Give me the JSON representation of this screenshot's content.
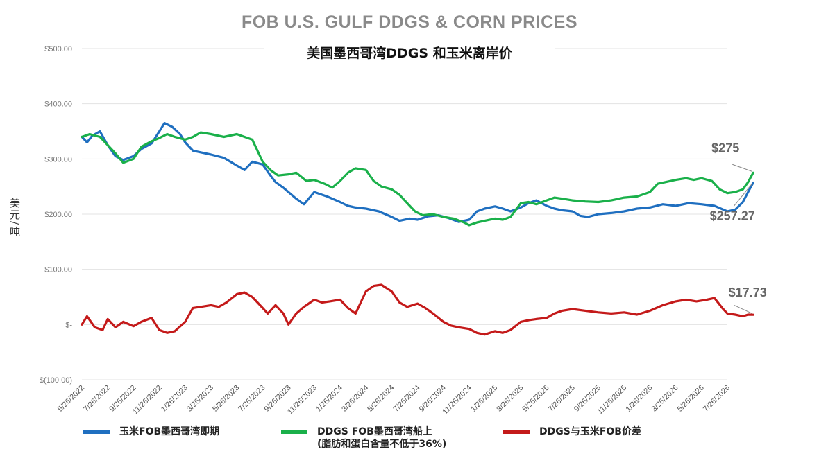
{
  "chart_data": {
    "type": "line",
    "title": "FOB U.S. GULF DDGS & CORN PRICES",
    "subtitle": "美国墨西哥湾DDGS 和玉米离岸价",
    "ylabel": "美元/吨",
    "ylim": [
      -100,
      500
    ],
    "yticks": [
      {
        "value": 500,
        "label": "$500.00"
      },
      {
        "value": 400,
        "label": "$400.00"
      },
      {
        "value": 300,
        "label": "$300.00"
      },
      {
        "value": 200,
        "label": "$200.00"
      },
      {
        "value": 100,
        "label": "$100.00"
      },
      {
        "value": 0,
        "label": "$-"
      },
      {
        "value": -100,
        "label": "$(100.00)"
      }
    ],
    "xticks": [
      "5/26/2022",
      "7/26/2022",
      "9/26/2022",
      "11/26/2022",
      "1/26/2023",
      "3/26/2023",
      "5/26/2023",
      "7/26/2023",
      "9/26/2023",
      "11/26/2023",
      "1/26/2024",
      "3/26/2024",
      "5/26/2024",
      "7/26/2024",
      "9/26/2024",
      "11/26/2024",
      "1/26/2025",
      "3/26/2025",
      "5/26/2025",
      "7/26/2025",
      "9/26/2025",
      "11/26/2025",
      "1/26/2026",
      "3/26/2026",
      "5/26/2026",
      "7/26/2026"
    ],
    "series": [
      {
        "name": "玉米FOB墨西哥湾即期",
        "color": "#1f6fc0",
        "points": [
          [
            0,
            340
          ],
          [
            0.2,
            330
          ],
          [
            0.4,
            342
          ],
          [
            0.7,
            350
          ],
          [
            1,
            325
          ],
          [
            1.3,
            305
          ],
          [
            1.6,
            298
          ],
          [
            2,
            305
          ],
          [
            2.3,
            318
          ],
          [
            2.7,
            328
          ],
          [
            3,
            350
          ],
          [
            3.2,
            365
          ],
          [
            3.5,
            358
          ],
          [
            3.8,
            345
          ],
          [
            4,
            330
          ],
          [
            4.3,
            315
          ],
          [
            4.6,
            312
          ],
          [
            5,
            308
          ],
          [
            5.5,
            302
          ],
          [
            6,
            288
          ],
          [
            6.3,
            280
          ],
          [
            6.6,
            295
          ],
          [
            7,
            290
          ],
          [
            7.3,
            270
          ],
          [
            7.5,
            258
          ],
          [
            7.8,
            248
          ],
          [
            8,
            240
          ],
          [
            8.3,
            228
          ],
          [
            8.6,
            218
          ],
          [
            9,
            240
          ],
          [
            9.5,
            232
          ],
          [
            10,
            222
          ],
          [
            10.3,
            215
          ],
          [
            10.6,
            212
          ],
          [
            11,
            210
          ],
          [
            11.5,
            205
          ],
          [
            12,
            195
          ],
          [
            12.3,
            188
          ],
          [
            12.7,
            192
          ],
          [
            13,
            190
          ],
          [
            13.4,
            196
          ],
          [
            13.8,
            198
          ],
          [
            14.2,
            193
          ],
          [
            14.6,
            186
          ],
          [
            15,
            190
          ],
          [
            15.3,
            205
          ],
          [
            15.6,
            210
          ],
          [
            16,
            214
          ],
          [
            16.3,
            210
          ],
          [
            16.6,
            205
          ],
          [
            17,
            212
          ],
          [
            17.3,
            220
          ],
          [
            17.6,
            225
          ],
          [
            18,
            215
          ],
          [
            18.3,
            210
          ],
          [
            18.6,
            207
          ],
          [
            19,
            205
          ],
          [
            19.3,
            197
          ],
          [
            19.6,
            195
          ],
          [
            20,
            200
          ],
          [
            20.5,
            202
          ],
          [
            21,
            205
          ],
          [
            21.5,
            210
          ],
          [
            22,
            212
          ],
          [
            22.5,
            218
          ],
          [
            23,
            215
          ],
          [
            23.5,
            220
          ],
          [
            24,
            218
          ],
          [
            24.5,
            215
          ],
          [
            25,
            205
          ],
          [
            25.3,
            208
          ],
          [
            25.6,
            222
          ],
          [
            25.8,
            240
          ],
          [
            26,
            257
          ]
        ]
      },
      {
        "name": "DDGS FOB墨西哥湾船上",
        "sublabel": "(脂肪和蛋白含量不低于36%)",
        "color": "#1ab04a",
        "points": [
          [
            0,
            340
          ],
          [
            0.3,
            345
          ],
          [
            0.7,
            340
          ],
          [
            1,
            325
          ],
          [
            1.3,
            310
          ],
          [
            1.6,
            293
          ],
          [
            2,
            300
          ],
          [
            2.3,
            322
          ],
          [
            2.7,
            332
          ],
          [
            3,
            338
          ],
          [
            3.3,
            345
          ],
          [
            3.6,
            340
          ],
          [
            4,
            335
          ],
          [
            4.3,
            340
          ],
          [
            4.6,
            348
          ],
          [
            5,
            345
          ],
          [
            5.5,
            340
          ],
          [
            6,
            345
          ],
          [
            6.3,
            340
          ],
          [
            6.6,
            335
          ],
          [
            7,
            295
          ],
          [
            7.3,
            280
          ],
          [
            7.6,
            270
          ],
          [
            8,
            272
          ],
          [
            8.3,
            275
          ],
          [
            8.7,
            260
          ],
          [
            9,
            262
          ],
          [
            9.4,
            255
          ],
          [
            9.7,
            248
          ],
          [
            10,
            260
          ],
          [
            10.3,
            275
          ],
          [
            10.6,
            283
          ],
          [
            11,
            280
          ],
          [
            11.3,
            260
          ],
          [
            11.6,
            250
          ],
          [
            12,
            245
          ],
          [
            12.3,
            235
          ],
          [
            12.6,
            220
          ],
          [
            12.9,
            205
          ],
          [
            13.2,
            198
          ],
          [
            13.6,
            200
          ],
          [
            14,
            195
          ],
          [
            14.4,
            192
          ],
          [
            14.8,
            185
          ],
          [
            15,
            180
          ],
          [
            15.3,
            185
          ],
          [
            15.6,
            188
          ],
          [
            16,
            192
          ],
          [
            16.3,
            190
          ],
          [
            16.6,
            195
          ],
          [
            17,
            220
          ],
          [
            17.3,
            222
          ],
          [
            17.6,
            218
          ],
          [
            18,
            225
          ],
          [
            18.3,
            230
          ],
          [
            18.6,
            228
          ],
          [
            19,
            225
          ],
          [
            19.5,
            223
          ],
          [
            20,
            222
          ],
          [
            20.5,
            225
          ],
          [
            21,
            230
          ],
          [
            21.5,
            232
          ],
          [
            22,
            240
          ],
          [
            22.3,
            255
          ],
          [
            22.6,
            258
          ],
          [
            23,
            262
          ],
          [
            23.4,
            265
          ],
          [
            23.7,
            262
          ],
          [
            24,
            265
          ],
          [
            24.4,
            260
          ],
          [
            24.7,
            245
          ],
          [
            25,
            238
          ],
          [
            25.3,
            240
          ],
          [
            25.6,
            245
          ],
          [
            25.8,
            258
          ],
          [
            26,
            275
          ]
        ]
      },
      {
        "name": "DDGS与玉米FOB价差",
        "color": "#c41a1a",
        "points": [
          [
            0,
            0
          ],
          [
            0.2,
            15
          ],
          [
            0.5,
            -5
          ],
          [
            0.8,
            -10
          ],
          [
            1,
            10
          ],
          [
            1.3,
            -5
          ],
          [
            1.6,
            5
          ],
          [
            2,
            -3
          ],
          [
            2.3,
            5
          ],
          [
            2.7,
            12
          ],
          [
            3,
            -10
          ],
          [
            3.3,
            -15
          ],
          [
            3.6,
            -12
          ],
          [
            4,
            5
          ],
          [
            4.3,
            30
          ],
          [
            4.6,
            32
          ],
          [
            5,
            35
          ],
          [
            5.3,
            32
          ],
          [
            5.6,
            40
          ],
          [
            6,
            55
          ],
          [
            6.3,
            58
          ],
          [
            6.6,
            50
          ],
          [
            7,
            30
          ],
          [
            7.2,
            20
          ],
          [
            7.5,
            35
          ],
          [
            7.8,
            20
          ],
          [
            8,
            0
          ],
          [
            8.3,
            20
          ],
          [
            8.6,
            32
          ],
          [
            9,
            45
          ],
          [
            9.3,
            40
          ],
          [
            9.6,
            42
          ],
          [
            10,
            45
          ],
          [
            10.3,
            30
          ],
          [
            10.6,
            20
          ],
          [
            11,
            60
          ],
          [
            11.3,
            70
          ],
          [
            11.6,
            72
          ],
          [
            12,
            60
          ],
          [
            12.3,
            40
          ],
          [
            12.6,
            32
          ],
          [
            13,
            38
          ],
          [
            13.3,
            30
          ],
          [
            13.6,
            20
          ],
          [
            14,
            5
          ],
          [
            14.3,
            -2
          ],
          [
            14.6,
            -5
          ],
          [
            15,
            -8
          ],
          [
            15.3,
            -15
          ],
          [
            15.6,
            -18
          ],
          [
            16,
            -12
          ],
          [
            16.3,
            -15
          ],
          [
            16.6,
            -10
          ],
          [
            17,
            5
          ],
          [
            17.3,
            8
          ],
          [
            17.6,
            10
          ],
          [
            18,
            12
          ],
          [
            18.3,
            20
          ],
          [
            18.6,
            25
          ],
          [
            19,
            28
          ],
          [
            19.5,
            25
          ],
          [
            20,
            22
          ],
          [
            20.5,
            20
          ],
          [
            21,
            22
          ],
          [
            21.5,
            18
          ],
          [
            22,
            25
          ],
          [
            22.5,
            35
          ],
          [
            23,
            42
          ],
          [
            23.4,
            45
          ],
          [
            23.8,
            42
          ],
          [
            24.2,
            45
          ],
          [
            24.5,
            48
          ],
          [
            24.8,
            30
          ],
          [
            25,
            20
          ],
          [
            25.3,
            18
          ],
          [
            25.6,
            15
          ],
          [
            25.8,
            18
          ],
          [
            26,
            17.73
          ]
        ]
      }
    ],
    "annotations": [
      {
        "label": "$275",
        "series": 1
      },
      {
        "label": "$257.27",
        "series": 0
      },
      {
        "label": "$17.73",
        "series": 2
      }
    ],
    "grid": true,
    "legend_position": "bottom"
  }
}
